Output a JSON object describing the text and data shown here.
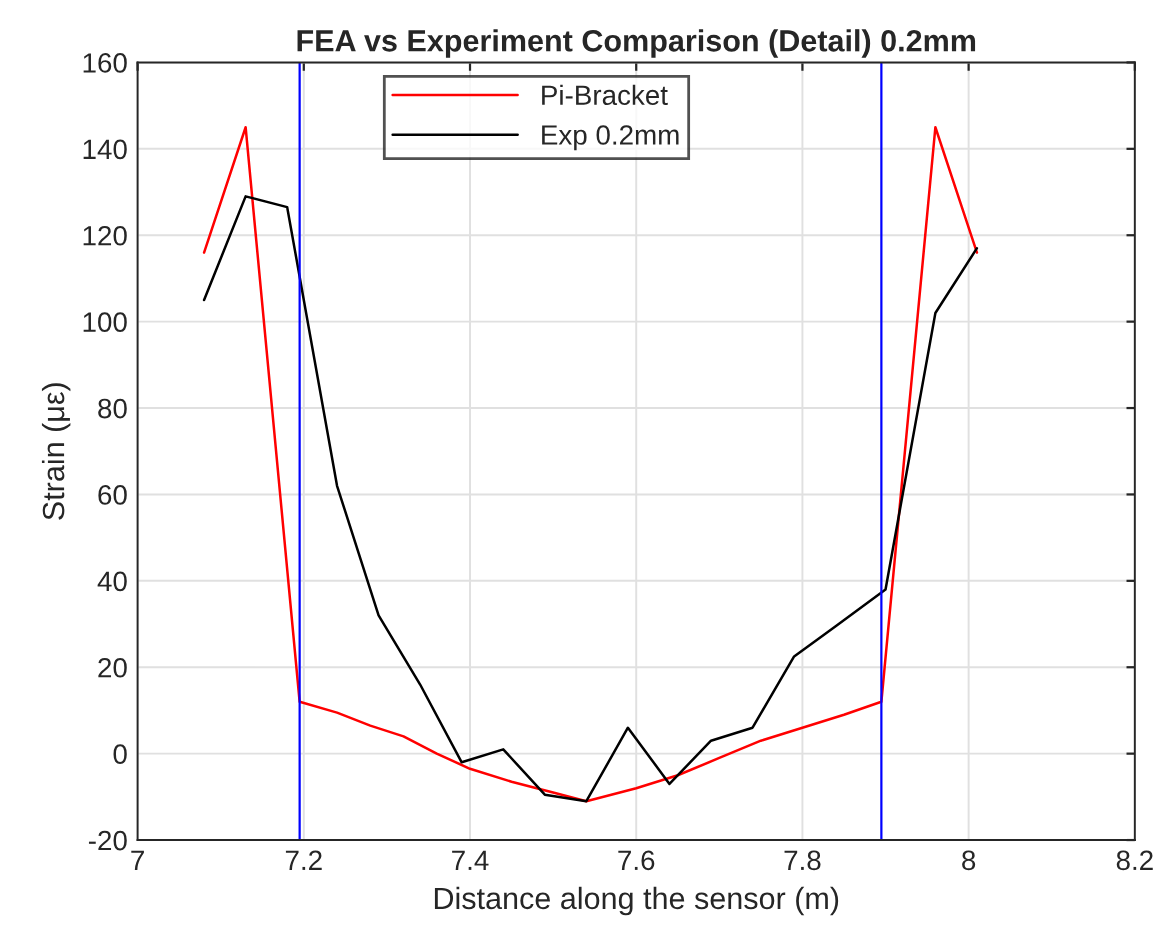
{
  "chart_data": {
    "type": "line",
    "title": "FEA vs Experiment Comparison (Detail) 0.2mm",
    "xlabel": "Distance along the sensor (m)",
    "ylabel": "Strain (με)",
    "series": [
      {
        "name": "Pi-Bracket",
        "color": "#ff0000",
        "x": [
          7.08,
          7.13,
          7.195,
          7.24,
          7.28,
          7.32,
          7.36,
          7.4,
          7.45,
          7.5,
          7.54,
          7.6,
          7.65,
          7.7,
          7.75,
          7.8,
          7.85,
          7.895,
          7.96,
          8.01
        ],
        "values": [
          116,
          145,
          12,
          9.5,
          6.5,
          4,
          0,
          -3.5,
          -6.5,
          -9,
          -11,
          -8,
          -5,
          -1,
          3,
          6,
          9,
          12,
          145,
          116
        ]
      },
      {
        "name": "Exp 0.2mm",
        "color": "#000000",
        "x": [
          7.08,
          7.13,
          7.18,
          7.24,
          7.29,
          7.34,
          7.39,
          7.44,
          7.49,
          7.54,
          7.59,
          7.64,
          7.69,
          7.74,
          7.79,
          7.84,
          7.9,
          7.96,
          8.01
        ],
        "values": [
          105,
          129,
          126.5,
          62,
          32,
          16,
          -2,
          1,
          -9.5,
          -11,
          6,
          -7,
          3,
          6,
          22.5,
          29.5,
          38,
          102,
          117
        ]
      }
    ],
    "ref_lines": [
      {
        "axis": "x",
        "value": 7.195,
        "color": "#0000ff"
      },
      {
        "axis": "x",
        "value": 7.895,
        "color": "#0000ff"
      }
    ],
    "xlim": [
      7,
      8.2
    ],
    "xticks": [
      7,
      7.2,
      7.4,
      7.6,
      7.8,
      8,
      8.2
    ],
    "ylim": [
      -20,
      160
    ],
    "yticks": [
      -20,
      0,
      20,
      40,
      60,
      80,
      100,
      120,
      140,
      160
    ],
    "grid": true,
    "legend": "top center",
    "line_style": "solid"
  }
}
